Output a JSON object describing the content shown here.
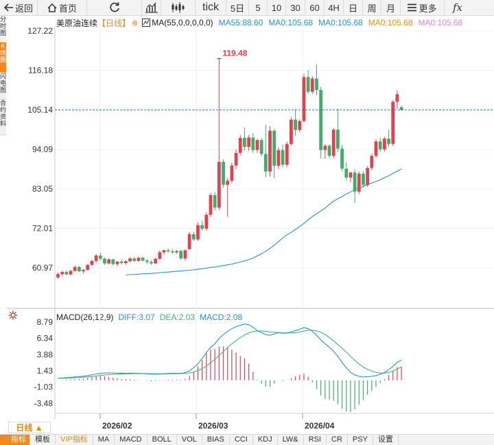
{
  "toolbar": {
    "back": "返回",
    "home": "首页",
    "tick": "tick",
    "periods": [
      "5日",
      "5",
      "10",
      "30",
      "60",
      "4H",
      "日",
      "周",
      "月"
    ],
    "more": "更多",
    "fx": "fx"
  },
  "sidebar": {
    "tabs": [
      "分时图",
      "K线图",
      "闪电图",
      "合约资料"
    ]
  },
  "legend": {
    "symbol": "美原油连续",
    "period": "【日线】",
    "ma_params": "MA(55,0,0,0,0,0)",
    "ma_values": [
      "MA55:88.60",
      "MA0:105.68",
      "MA0:105.68",
      "MA0:105.68",
      "MA0:105.68"
    ],
    "colors": [
      "#2a8fd4",
      "#2a8fd4",
      "#2a8fd4",
      "#e8901a",
      "#d888d8"
    ]
  },
  "price_axis": [
    "127.22",
    "116.18",
    "105.14",
    "94.09",
    "83.05",
    "72.01",
    "60.97"
  ],
  "macd_axis": [
    "8.79",
    "6.34",
    "3.88",
    "1.43",
    "-1.03",
    "-3.48"
  ],
  "date_labels": [
    "2026/02",
    "2026/03",
    "2026/04"
  ],
  "max_label": "119.48",
  "current_price": 105.14,
  "macd_legend": {
    "title": "MACD(26,12,9)",
    "diff": "DIFF:3.07",
    "dea": "DEA:2.03",
    "macd": "MACD:2.08"
  },
  "period_badge": "日线 ▲",
  "bottom_tabs": [
    "指标",
    "模板",
    "VIP指标",
    "MA",
    "MACD",
    "BOLL",
    "VOL",
    "BIAS",
    "CCI",
    "KDJ",
    "LW&",
    "RSI",
    "CR",
    "PSY",
    "设置"
  ],
  "colors": {
    "up": "#e0424f",
    "down": "#3fae6b",
    "ma": "#2a8fd4",
    "diff": "#2a8fd4",
    "dea": "#3fb87a",
    "accent": "#f08a1f",
    "price_line": "#2a6fc2"
  },
  "chart_data": [
    {
      "type": "candlestick",
      "title": "美原油连续 日线",
      "ylim": [
        55,
        130
      ],
      "candles": [
        [
          58.3,
          59.6,
          57.9,
          59.2
        ],
        [
          59.2,
          60.1,
          58.6,
          59.8
        ],
        [
          59.8,
          60.3,
          58.9,
          59.1
        ],
        [
          59.1,
          60.4,
          58.8,
          60.1
        ],
        [
          60.1,
          61.6,
          59.9,
          61.2
        ],
        [
          61.2,
          61.5,
          59.8,
          60.0
        ],
        [
          60.0,
          60.6,
          59.3,
          60.4
        ],
        [
          60.4,
          62.0,
          60.2,
          61.8
        ],
        [
          61.8,
          63.2,
          61.4,
          62.9
        ],
        [
          62.9,
          64.8,
          62.4,
          64.4
        ],
        [
          64.4,
          65.2,
          63.1,
          63.5
        ],
        [
          63.5,
          63.9,
          61.8,
          62.2
        ],
        [
          62.2,
          63.7,
          61.9,
          63.3
        ],
        [
          63.3,
          63.6,
          61.7,
          62.0
        ],
        [
          62.0,
          62.9,
          61.4,
          62.7
        ],
        [
          62.7,
          63.4,
          61.9,
          62.3
        ],
        [
          62.3,
          63.1,
          61.8,
          62.8
        ],
        [
          62.8,
          63.9,
          62.5,
          63.6
        ],
        [
          63.6,
          64.0,
          62.6,
          62.9
        ],
        [
          62.9,
          64.0,
          62.7,
          63.8
        ],
        [
          63.8,
          64.1,
          62.7,
          63.0
        ],
        [
          63.0,
          63.5,
          62.0,
          62.6
        ],
        [
          62.6,
          63.0,
          61.8,
          62.2
        ],
        [
          62.2,
          63.8,
          62.0,
          63.5
        ],
        [
          63.5,
          65.8,
          63.2,
          65.3
        ],
        [
          65.3,
          66.0,
          64.7,
          65.9
        ],
        [
          65.9,
          66.3,
          65.1,
          65.6
        ],
        [
          65.6,
          66.2,
          65.0,
          65.3
        ],
        [
          65.3,
          65.9,
          64.9,
          65.7
        ],
        [
          65.7,
          66.1,
          63.2,
          63.6
        ],
        [
          63.6,
          66.1,
          63.0,
          65.9
        ],
        [
          66.2,
          71.0,
          66.0,
          70.4
        ],
        [
          70.4,
          71.1,
          68.4,
          68.9
        ],
        [
          68.9,
          73.7,
          68.5,
          72.9
        ],
        [
          72.9,
          74.2,
          71.4,
          71.9
        ],
        [
          71.9,
          76.5,
          71.3,
          75.8
        ],
        [
          75.8,
          82.0,
          75.2,
          81.3
        ],
        [
          81.3,
          82.2,
          77.0,
          77.8
        ],
        [
          77.8,
          119.48,
          77.1,
          90.6
        ],
        [
          90.6,
          91.3,
          83.4,
          84.2
        ],
        [
          84.2,
          86.1,
          75.2,
          85.3
        ],
        [
          85.3,
          90.4,
          84.6,
          89.6
        ],
        [
          89.6,
          94.1,
          88.6,
          93.1
        ],
        [
          93.1,
          98.1,
          92.4,
          97.3
        ],
        [
          97.3,
          100.2,
          93.8,
          94.8
        ],
        [
          94.8,
          98.1,
          93.7,
          97.4
        ],
        [
          97.4,
          98.6,
          93.1,
          93.9
        ],
        [
          93.9,
          97.0,
          93.1,
          96.7
        ],
        [
          96.7,
          97.3,
          92.2,
          92.8
        ],
        [
          92.8,
          101.0,
          86.3,
          87.9
        ],
        [
          87.9,
          100.6,
          86.5,
          99.3
        ],
        [
          99.3,
          99.8,
          86.0,
          89.5
        ],
        [
          89.5,
          94.6,
          88.6,
          93.9
        ],
        [
          93.9,
          95.4,
          89.1,
          89.8
        ],
        [
          89.8,
          96.3,
          89.1,
          95.6
        ],
        [
          95.6,
          103.1,
          95.1,
          102.4
        ],
        [
          102.4,
          105.4,
          97.9,
          99.5
        ],
        [
          99.5,
          102.5,
          98.9,
          102.0
        ],
        [
          102.0,
          115.2,
          101.6,
          114.3
        ],
        [
          114.3,
          116.3,
          109.6,
          110.2
        ],
        [
          110.2,
          114.6,
          109.6,
          113.9
        ],
        [
          113.9,
          117.8,
          109.2,
          110.7
        ],
        [
          110.7,
          111.6,
          91.5,
          93.9
        ],
        [
          93.9,
          95.6,
          91.5,
          95.1
        ],
        [
          95.1,
          95.6,
          91.7,
          92.3
        ],
        [
          92.3,
          100.1,
          91.6,
          99.6
        ],
        [
          99.6,
          105.5,
          93.3,
          94.3
        ],
        [
          94.3,
          95.4,
          88.0,
          88.7
        ],
        [
          88.7,
          90.5,
          85.4,
          86.2
        ],
        [
          86.2,
          87.9,
          84.9,
          87.6
        ],
        [
          87.6,
          88.5,
          79.0,
          82.3
        ],
        [
          82.3,
          87.9,
          81.6,
          87.3
        ],
        [
          87.3,
          88.0,
          83.4,
          84.1
        ],
        [
          84.1,
          89.4,
          83.6,
          88.9
        ],
        [
          88.9,
          92.9,
          88.2,
          92.3
        ],
        [
          92.3,
          96.9,
          91.7,
          96.3
        ],
        [
          96.3,
          97.4,
          93.5,
          94.1
        ],
        [
          94.1,
          97.6,
          93.5,
          97.1
        ],
        [
          97.1,
          99.6,
          94.8,
          95.6
        ],
        [
          95.6,
          107.9,
          95.0,
          107.4
        ],
        [
          107.4,
          110.6,
          105.4,
          109.5
        ],
        [
          105.9,
          106.4,
          104.9,
          105.14
        ]
      ],
      "ma55": [
        59.0,
        59.1,
        59.1,
        59.2,
        59.3,
        59.3,
        59.4,
        59.5,
        59.6,
        59.7,
        59.8,
        59.9,
        60.0,
        60.1,
        60.2,
        60.3,
        60.4,
        60.6,
        60.7,
        60.9,
        61.1,
        61.2,
        61.4,
        61.6,
        61.8,
        62.0,
        62.3,
        62.6,
        62.9,
        63.3,
        63.7,
        64.3,
        64.9,
        65.6,
        66.4,
        67.3,
        68.3,
        69.3,
        70.2,
        70.9,
        71.7,
        72.5,
        73.4,
        74.4,
        75.3,
        76.1,
        76.9,
        77.7,
        78.7,
        79.6,
        80.3,
        80.9,
        81.6,
        82.2,
        82.8,
        83.3,
        83.7,
        84.2,
        84.7,
        85.1,
        85.6,
        86.2,
        86.7,
        87.4,
        88.0,
        88.6
      ],
      "macd_diff": [
        0.3,
        0.35,
        0.4,
        0.45,
        0.5,
        0.55,
        0.62,
        0.7,
        0.82,
        0.95,
        1.05,
        1.1,
        1.12,
        1.1,
        1.08,
        1.07,
        1.08,
        1.08,
        1.07,
        1.05,
        1.02,
        0.98,
        0.94,
        0.92,
        0.95,
        1.0,
        1.03,
        1.05,
        1.06,
        1.05,
        1.15,
        1.45,
        1.9,
        2.5,
        3.3,
        4.2,
        5.0,
        5.5,
        6.3,
        6.9,
        7.4,
        7.8,
        8.1,
        8.3,
        8.5,
        8.4,
        8.0,
        7.5,
        7.2,
        6.9,
        6.8,
        7.0,
        7.2,
        7.1,
        7.15,
        7.3,
        7.5,
        7.7,
        7.95,
        7.8,
        7.4,
        6.8,
        6.1,
        5.5,
        5.0,
        4.4,
        3.6,
        2.7,
        1.9,
        1.2,
        0.8,
        0.6,
        0.5,
        0.55,
        0.6,
        0.7,
        0.9,
        1.2,
        1.6,
        2.1,
        2.7,
        3.07
      ],
      "macd_dea": [
        0.3,
        0.32,
        0.34,
        0.37,
        0.4,
        0.44,
        0.48,
        0.52,
        0.58,
        0.65,
        0.72,
        0.8,
        0.86,
        0.9,
        0.94,
        0.96,
        0.98,
        1.0,
        1.02,
        1.02,
        1.02,
        1.01,
        1.0,
        0.98,
        0.98,
        0.98,
        0.99,
        1.0,
        1.01,
        1.02,
        1.04,
        1.12,
        1.25,
        1.45,
        1.75,
        2.15,
        2.65,
        3.15,
        3.75,
        4.35,
        4.95,
        5.5,
        6.0,
        6.45,
        6.85,
        7.15,
        7.35,
        7.45,
        7.45,
        7.4,
        7.3,
        7.25,
        7.2,
        7.15,
        7.15,
        7.15,
        7.2,
        7.3,
        7.45,
        7.55,
        7.55,
        7.45,
        7.25,
        6.9,
        6.45,
        5.95,
        5.4,
        4.85,
        4.25,
        3.6,
        3.0,
        2.45,
        2.0,
        1.65,
        1.4,
        1.2,
        1.1,
        1.1,
        1.2,
        1.4,
        1.7,
        2.03
      ]
    }
  ]
}
